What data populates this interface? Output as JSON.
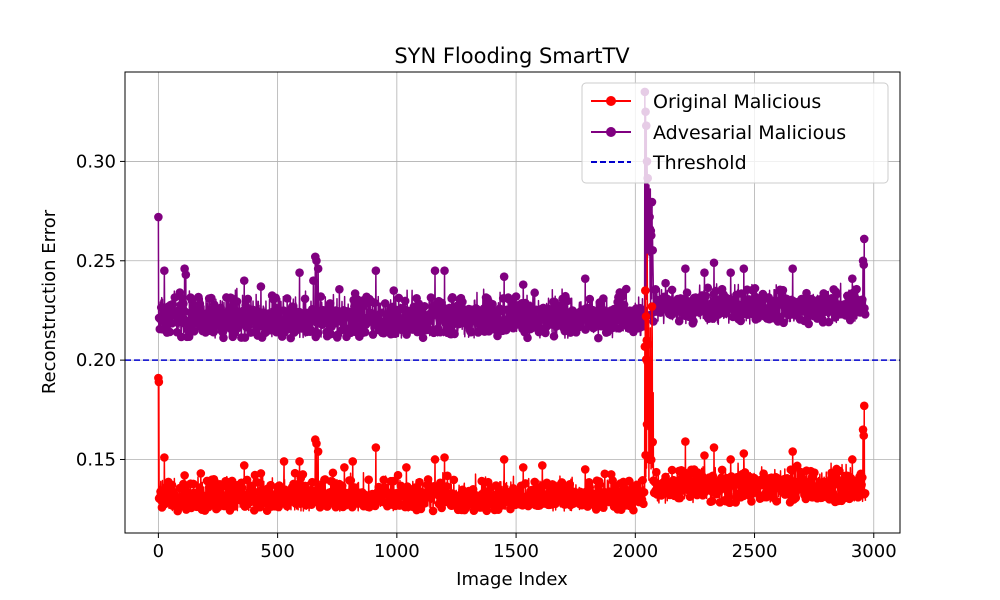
{
  "chart_data": {
    "type": "line",
    "title": "SYN Flooding SmartTV",
    "xlabel": "Image Index",
    "ylabel": "Reconstruction Error",
    "xlim": [
      -140,
      3110
    ],
    "ylim": [
      0.113,
      0.345
    ],
    "xticks": [
      0,
      500,
      1000,
      1500,
      2000,
      2500,
      3000
    ],
    "xtick_labels": [
      "0",
      "500",
      "1000",
      "1500",
      "2000",
      "2500",
      "3000"
    ],
    "yticks": [
      0.15,
      0.2,
      0.25,
      0.3
    ],
    "ytick_labels": [
      "0.15",
      "0.20",
      "0.25",
      "0.30"
    ],
    "grid": true,
    "legend_position": "top-right",
    "colors": {
      "original": "#ff0000",
      "adversarial": "#800080",
      "threshold": "#0000cc"
    },
    "series": [
      {
        "name": "Original Malicious",
        "color": "#ff0000",
        "n_points": 2966,
        "segments": [
          {
            "x_start": 0,
            "x_end": 2039,
            "baseline": 0.13,
            "noise_low": 0.124,
            "noise_high": 0.14
          },
          {
            "x_start": 2040,
            "x_end": 2075,
            "baseline": 0.16,
            "noise_low": 0.13,
            "noise_high": 0.235
          },
          {
            "x_start": 2076,
            "x_end": 2965,
            "baseline": 0.136,
            "noise_low": 0.128,
            "noise_high": 0.145
          }
        ],
        "peaks": [
          {
            "x": 0,
            "y": 0.191
          },
          {
            "x": 2,
            "y": 0.189
          },
          {
            "x": 25,
            "y": 0.151
          },
          {
            "x": 110,
            "y": 0.142
          },
          {
            "x": 178,
            "y": 0.143
          },
          {
            "x": 233,
            "y": 0.14
          },
          {
            "x": 360,
            "y": 0.147
          },
          {
            "x": 430,
            "y": 0.143
          },
          {
            "x": 527,
            "y": 0.149
          },
          {
            "x": 592,
            "y": 0.149
          },
          {
            "x": 658,
            "y": 0.16
          },
          {
            "x": 663,
            "y": 0.158
          },
          {
            "x": 670,
            "y": 0.154
          },
          {
            "x": 780,
            "y": 0.146
          },
          {
            "x": 815,
            "y": 0.149
          },
          {
            "x": 912,
            "y": 0.156
          },
          {
            "x": 1040,
            "y": 0.146
          },
          {
            "x": 1160,
            "y": 0.15
          },
          {
            "x": 1200,
            "y": 0.151
          },
          {
            "x": 1450,
            "y": 0.15
          },
          {
            "x": 1530,
            "y": 0.146
          },
          {
            "x": 1610,
            "y": 0.147
          },
          {
            "x": 1790,
            "y": 0.145
          },
          {
            "x": 2042,
            "y": 0.235
          },
          {
            "x": 2045,
            "y": 0.222
          },
          {
            "x": 2048,
            "y": 0.21
          },
          {
            "x": 2052,
            "y": 0.199
          },
          {
            "x": 2210,
            "y": 0.159
          },
          {
            "x": 2290,
            "y": 0.152
          },
          {
            "x": 2330,
            "y": 0.156
          },
          {
            "x": 2400,
            "y": 0.15
          },
          {
            "x": 2455,
            "y": 0.153
          },
          {
            "x": 2660,
            "y": 0.154
          },
          {
            "x": 2910,
            "y": 0.15
          },
          {
            "x": 2955,
            "y": 0.165
          },
          {
            "x": 2958,
            "y": 0.162
          },
          {
            "x": 2960,
            "y": 0.177
          }
        ]
      },
      {
        "name": "Advesarial Malicious",
        "color": "#800080",
        "n_points": 2966,
        "segments": [
          {
            "x_start": 0,
            "x_end": 2039,
            "baseline": 0.22,
            "noise_low": 0.211,
            "noise_high": 0.232
          },
          {
            "x_start": 2040,
            "x_end": 2075,
            "baseline": 0.25,
            "noise_low": 0.222,
            "noise_high": 0.3
          },
          {
            "x_start": 2076,
            "x_end": 2965,
            "baseline": 0.226,
            "noise_low": 0.218,
            "noise_high": 0.236
          }
        ],
        "peaks": [
          {
            "x": 0,
            "y": 0.272
          },
          {
            "x": 25,
            "y": 0.245
          },
          {
            "x": 90,
            "y": 0.234
          },
          {
            "x": 110,
            "y": 0.246
          },
          {
            "x": 115,
            "y": 0.243
          },
          {
            "x": 360,
            "y": 0.24
          },
          {
            "x": 430,
            "y": 0.237
          },
          {
            "x": 592,
            "y": 0.244
          },
          {
            "x": 658,
            "y": 0.252
          },
          {
            "x": 663,
            "y": 0.25
          },
          {
            "x": 670,
            "y": 0.246
          },
          {
            "x": 650,
            "y": 0.24
          },
          {
            "x": 912,
            "y": 0.245
          },
          {
            "x": 1160,
            "y": 0.245
          },
          {
            "x": 1200,
            "y": 0.245
          },
          {
            "x": 1450,
            "y": 0.242
          },
          {
            "x": 1530,
            "y": 0.238
          },
          {
            "x": 1790,
            "y": 0.241
          },
          {
            "x": 2040,
            "y": 0.335
          },
          {
            "x": 2043,
            "y": 0.325
          },
          {
            "x": 2046,
            "y": 0.318
          },
          {
            "x": 2049,
            "y": 0.3
          },
          {
            "x": 2055,
            "y": 0.277
          },
          {
            "x": 2060,
            "y": 0.272
          },
          {
            "x": 2065,
            "y": 0.265
          },
          {
            "x": 2210,
            "y": 0.246
          },
          {
            "x": 2290,
            "y": 0.244
          },
          {
            "x": 2330,
            "y": 0.249
          },
          {
            "x": 2400,
            "y": 0.244
          },
          {
            "x": 2455,
            "y": 0.246
          },
          {
            "x": 2660,
            "y": 0.246
          },
          {
            "x": 2910,
            "y": 0.241
          },
          {
            "x": 2955,
            "y": 0.25
          },
          {
            "x": 2958,
            "y": 0.248
          },
          {
            "x": 2960,
            "y": 0.261
          }
        ]
      },
      {
        "name": "Threshold",
        "color": "#0000cc",
        "style": "dashed",
        "value": 0.2
      }
    ]
  }
}
